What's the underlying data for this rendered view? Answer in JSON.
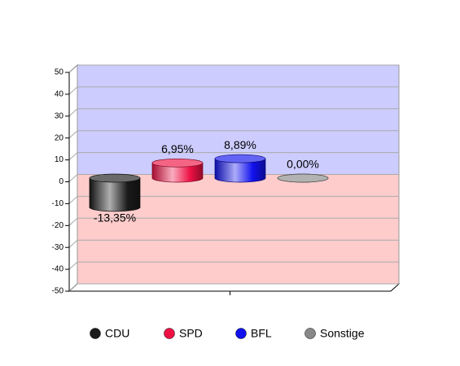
{
  "chart_data": {
    "type": "bar",
    "series": [
      {
        "name": "CDU",
        "color": "#1a1a1a",
        "values": [
          -13.35
        ],
        "value_labels": [
          "-13,35%"
        ]
      },
      {
        "name": "SPD",
        "color": "#ee1144",
        "values": [
          6.95
        ],
        "value_labels": [
          "6,95%"
        ]
      },
      {
        "name": "BFL",
        "color": "#1111ee",
        "values": [
          8.89
        ],
        "value_labels": [
          "8,89%"
        ]
      },
      {
        "name": "Sonstige",
        "color": "#888888",
        "values": [
          0.0
        ],
        "value_labels": [
          "0,00%"
        ]
      }
    ],
    "ylim": [
      -50,
      50
    ],
    "yticks": [
      -50,
      -40,
      -30,
      -20,
      -10,
      0,
      10,
      20,
      30,
      40,
      50
    ],
    "grid": true,
    "positive_background": "#ccccff",
    "negative_background": "#ffcccc",
    "legend": "bottom"
  }
}
